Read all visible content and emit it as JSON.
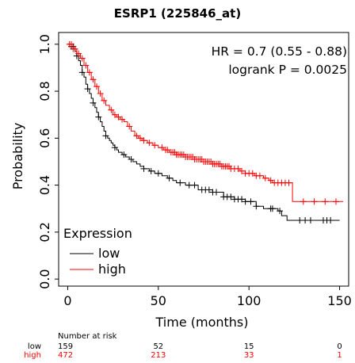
{
  "chart_data": {
    "type": "line",
    "title": "ESRP1 (225846_at)",
    "xlabel": "Time (months)",
    "ylabel": "Probability",
    "xlim": [
      -5,
      155
    ],
    "ylim": [
      -0.03,
      1.05
    ],
    "x_ticks": [
      0,
      50,
      100,
      150
    ],
    "x_tick_labels": [
      "0",
      "50",
      "100",
      "150"
    ],
    "y_ticks": [
      0.0,
      0.2,
      0.4,
      0.6,
      0.8,
      1.0
    ],
    "y_tick_labels": [
      "0.0",
      "0.2",
      "0.4",
      "0.6",
      "0.8",
      "1.0"
    ],
    "annotations": [
      "HR = 0.7 (0.55 - 0.88)",
      "logrank P = 0.0025"
    ],
    "legend": {
      "title": "Expression",
      "position": "bottom-left"
    },
    "series": [
      {
        "name": "low",
        "color": "#000000",
        "steps": [
          [
            0,
            1.0
          ],
          [
            2,
            0.99
          ],
          [
            4,
            0.97
          ],
          [
            5,
            0.95
          ],
          [
            6,
            0.93
          ],
          [
            7,
            0.91
          ],
          [
            8,
            0.88
          ],
          [
            9,
            0.86
          ],
          [
            10,
            0.83
          ],
          [
            11,
            0.81
          ],
          [
            12,
            0.79
          ],
          [
            13,
            0.77
          ],
          [
            14,
            0.75
          ],
          [
            15,
            0.73
          ],
          [
            16,
            0.71
          ],
          [
            17,
            0.69
          ],
          [
            18,
            0.67
          ],
          [
            19,
            0.65
          ],
          [
            20,
            0.63
          ],
          [
            21,
            0.61
          ],
          [
            22,
            0.6
          ],
          [
            23,
            0.59
          ],
          [
            24,
            0.58
          ],
          [
            25,
            0.57
          ],
          [
            26,
            0.56
          ],
          [
            27,
            0.55
          ],
          [
            28,
            0.54
          ],
          [
            30,
            0.53
          ],
          [
            32,
            0.52
          ],
          [
            34,
            0.51
          ],
          [
            36,
            0.5
          ],
          [
            38,
            0.49
          ],
          [
            40,
            0.48
          ],
          [
            42,
            0.47
          ],
          [
            45,
            0.46
          ],
          [
            48,
            0.45
          ],
          [
            52,
            0.44
          ],
          [
            55,
            0.43
          ],
          [
            58,
            0.42
          ],
          [
            60,
            0.41
          ],
          [
            65,
            0.4
          ],
          [
            72,
            0.38
          ],
          [
            80,
            0.37
          ],
          [
            86,
            0.35
          ],
          [
            92,
            0.34
          ],
          [
            98,
            0.33
          ],
          [
            104,
            0.31
          ],
          [
            108,
            0.3
          ],
          [
            116,
            0.29
          ],
          [
            118,
            0.27
          ],
          [
            121,
            0.25
          ],
          [
            150,
            0.25
          ]
        ],
        "censor_x": [
          2,
          3,
          5,
          8,
          11,
          14,
          17,
          21,
          26,
          31,
          35,
          42,
          46,
          50,
          56,
          62,
          67,
          70,
          74,
          76,
          78,
          80,
          82,
          86,
          88,
          90,
          92,
          94,
          96,
          98,
          101,
          104,
          112,
          113,
          117,
          128,
          131,
          134,
          141,
          143,
          145
        ],
        "risk_at": [
          159,
          52,
          15,
          0
        ]
      },
      {
        "name": "high",
        "color": "#ff0000",
        "steps": [
          [
            0,
            1.0
          ],
          [
            3,
            0.98
          ],
          [
            5,
            0.96
          ],
          [
            7,
            0.94
          ],
          [
            9,
            0.91
          ],
          [
            11,
            0.88
          ],
          [
            13,
            0.85
          ],
          [
            15,
            0.82
          ],
          [
            17,
            0.79
          ],
          [
            19,
            0.76
          ],
          [
            21,
            0.74
          ],
          [
            23,
            0.72
          ],
          [
            25,
            0.7
          ],
          [
            27,
            0.69
          ],
          [
            29,
            0.68
          ],
          [
            31,
            0.67
          ],
          [
            33,
            0.65
          ],
          [
            35,
            0.63
          ],
          [
            37,
            0.61
          ],
          [
            39,
            0.6
          ],
          [
            41,
            0.59
          ],
          [
            44,
            0.58
          ],
          [
            47,
            0.57
          ],
          [
            50,
            0.56
          ],
          [
            53,
            0.55
          ],
          [
            56,
            0.54
          ],
          [
            60,
            0.53
          ],
          [
            65,
            0.52
          ],
          [
            70,
            0.51
          ],
          [
            75,
            0.5
          ],
          [
            80,
            0.49
          ],
          [
            85,
            0.48
          ],
          [
            90,
            0.47
          ],
          [
            95,
            0.46
          ],
          [
            98,
            0.45
          ],
          [
            103,
            0.44
          ],
          [
            108,
            0.43
          ],
          [
            111,
            0.42
          ],
          [
            113,
            0.41
          ],
          [
            124,
            0.41
          ],
          [
            124,
            0.33
          ],
          [
            152,
            0.33
          ]
        ],
        "censor_x": [
          1,
          2,
          3,
          4,
          6,
          8,
          10,
          12,
          14,
          16,
          18,
          20,
          24,
          26,
          28,
          30,
          34,
          38,
          40,
          42,
          45,
          48,
          52,
          54,
          55,
          57,
          58,
          59,
          60,
          61,
          62,
          63,
          64,
          65,
          66,
          67,
          68,
          69,
          70,
          71,
          72,
          73,
          74,
          75,
          76,
          77,
          78,
          79,
          80,
          81,
          82,
          83,
          84,
          85,
          86,
          87,
          88,
          89,
          90,
          92,
          94,
          96,
          98,
          100,
          102,
          104,
          106,
          109,
          112,
          114,
          116,
          118,
          120,
          122,
          130,
          136,
          142,
          148
        ],
        "risk_at": [
          472,
          213,
          33,
          1
        ]
      }
    ],
    "risk_table": {
      "header": "Number at risk",
      "times": [
        0,
        50,
        100,
        150
      ],
      "rows": [
        {
          "label": "low",
          "color": "#000000",
          "values": [
            "159",
            "52",
            "15",
            "0"
          ]
        },
        {
          "label": "high",
          "color": "#ff0000",
          "values": [
            "472",
            "213",
            "33",
            "1"
          ]
        }
      ]
    }
  }
}
